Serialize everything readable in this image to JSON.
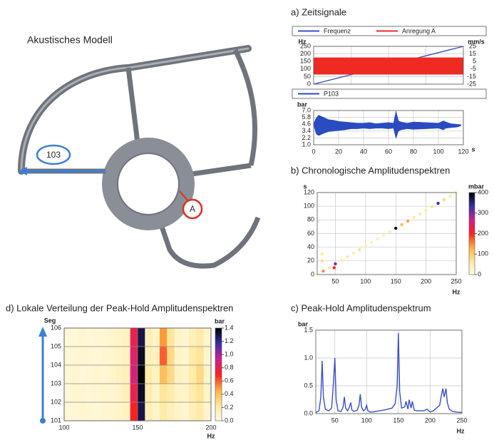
{
  "model": {
    "title": "Akustisches Modell",
    "sensor_label": "103",
    "excitation_label": "A"
  },
  "chart_data": [
    {
      "type": "line",
      "title": "a) Zeitsignale",
      "y_label": "Hz",
      "y2_label": "mm/s",
      "x": [
        0,
        120
      ],
      "xlim": [
        0,
        120
      ],
      "ylim": [
        0,
        250
      ],
      "yticks": [
        0,
        50,
        100,
        150,
        200,
        250
      ],
      "y2lim": [
        -25,
        25
      ],
      "y2ticks": [
        -25,
        -15,
        -5,
        5,
        15,
        25
      ],
      "grid": true,
      "series": [
        {
          "name": "Frequenz",
          "color": "#3b4fc0",
          "values": [
            0,
            250
          ]
        },
        {
          "name": "Anregung A",
          "color": "#ee2a22",
          "axis": "y2",
          "type": "band",
          "high": [
            10,
            10
          ],
          "low": [
            -12,
            -12
          ]
        }
      ]
    },
    {
      "type": "line",
      "x_label": "s",
      "y_label": "bar",
      "x": [
        0,
        2,
        4,
        8,
        12,
        16,
        20,
        25,
        30,
        35,
        40,
        45,
        50,
        55,
        60,
        64,
        66,
        68,
        70,
        75,
        80,
        90,
        100,
        104,
        106,
        110,
        115,
        118
      ],
      "xlim": [
        0,
        120
      ],
      "xticks": [
        0,
        20,
        40,
        60,
        80,
        100,
        120
      ],
      "ylim": [
        1,
        7
      ],
      "yticks": [
        {
          "value": 1,
          "label": "1.0"
        },
        2.2,
        3.4,
        4.6,
        5.8,
        {
          "value": 7,
          "label": "7.0"
        }
      ],
      "grid": true,
      "series": [
        {
          "name": "P103",
          "color": "#2a4cc0",
          "type": "band",
          "high": [
            4.7,
            5.7,
            6.2,
            5.8,
            5.4,
            5.3,
            5.1,
            5.0,
            4.9,
            4.8,
            4.8,
            4.9,
            4.7,
            4.8,
            4.9,
            4.8,
            6.9,
            5.2,
            5.0,
            4.8,
            5.0,
            4.9,
            4.8,
            5.2,
            5.0,
            4.7,
            4.6,
            4.5
          ],
          "low": [
            4.5,
            2.9,
            2.6,
            3.0,
            3.3,
            3.4,
            3.5,
            3.6,
            3.8,
            3.8,
            3.9,
            3.8,
            3.9,
            3.9,
            3.8,
            3.9,
            2.1,
            3.4,
            3.6,
            3.8,
            3.7,
            3.8,
            3.9,
            3.6,
            3.9,
            4.0,
            4.1,
            4.3
          ]
        }
      ]
    },
    {
      "type": "scatter",
      "title": "b) Chronologische Amplitudenspektren",
      "x_label": "Hz",
      "y_label": "s",
      "z_label": "mbar",
      "x": [
        20,
        30,
        40,
        50,
        60,
        70,
        80,
        90,
        100,
        110,
        120,
        130,
        140,
        150,
        160,
        170,
        180,
        190,
        200,
        210,
        220,
        230,
        240,
        250,
        28,
        28,
        48
      ],
      "y": [
        0,
        5.2,
        10.4,
        15.7,
        20.9,
        26.1,
        31.3,
        36.5,
        41.7,
        47.0,
        52.2,
        57.4,
        62.6,
        67.8,
        73.0,
        78.3,
        83.5,
        88.7,
        93.9,
        99.1,
        104.3,
        109.6,
        114.8,
        120,
        20,
        30,
        10
      ],
      "z": [
        40,
        150,
        60,
        300,
        50,
        60,
        50,
        80,
        50,
        40,
        40,
        40,
        50,
        380,
        120,
        140,
        60,
        50,
        60,
        70,
        330,
        90,
        60,
        50,
        80,
        60,
        200
      ],
      "xlim": [
        20,
        250
      ],
      "xticks": [
        50,
        100,
        150,
        200,
        250
      ],
      "ylim": [
        0,
        120
      ],
      "yticks": [
        0,
        20,
        40,
        60,
        80,
        100,
        120
      ],
      "zlim": [
        0,
        400
      ],
      "zticks": [
        0,
        100,
        200,
        300,
        400
      ],
      "grid": true,
      "colormap": [
        "#fffbe6",
        "#ffe9a0",
        "#ffb040",
        "#ff2020",
        "#d0208c",
        "#3b2fa8",
        "#000000"
      ]
    },
    {
      "type": "line",
      "title": "c) Peak-Hold Amplitudenspektrum",
      "x_label": "Hz",
      "y_label": "bar",
      "x": [
        20,
        25,
        28,
        30,
        32,
        35,
        40,
        45,
        48,
        50,
        52,
        55,
        60,
        63,
        65,
        67,
        70,
        73,
        75,
        77,
        80,
        85,
        88,
        90,
        92,
        95,
        98,
        100,
        102,
        105,
        110,
        120,
        130,
        140,
        145,
        148,
        150,
        152,
        155,
        160,
        162,
        165,
        167,
        170,
        172,
        175,
        180,
        190,
        195,
        200,
        205,
        210,
        215,
        218,
        220,
        222,
        225,
        227,
        230,
        235,
        240,
        250
      ],
      "xlim": [
        20,
        250
      ],
      "xticks": [
        50,
        100,
        150,
        200,
        250
      ],
      "ylim": [
        0,
        1.5
      ],
      "yticks": [
        {
          "value": 0,
          "label": "0.0"
        },
        0.5,
        {
          "value": 1,
          "label": "1.0"
        },
        1.5
      ],
      "grid": true,
      "series": [
        {
          "color": "#3b4fc0",
          "values": [
            0.02,
            0.05,
            0.3,
            0.95,
            0.3,
            0.08,
            0.05,
            0.1,
            0.6,
            1.0,
            0.25,
            0.05,
            0.04,
            0.12,
            0.3,
            0.1,
            0.05,
            0.12,
            0.2,
            0.06,
            0.04,
            0.06,
            0.15,
            0.35,
            0.12,
            0.05,
            0.08,
            0.15,
            0.05,
            0.03,
            0.03,
            0.05,
            0.07,
            0.1,
            0.18,
            0.5,
            1.45,
            0.4,
            0.1,
            0.12,
            0.22,
            0.08,
            0.25,
            0.1,
            0.22,
            0.06,
            0.05,
            0.05,
            0.08,
            0.03,
            0.05,
            0.1,
            0.15,
            0.35,
            0.45,
            0.3,
            0.45,
            0.2,
            0.08,
            0.04,
            0.03,
            0.02
          ]
        }
      ]
    },
    {
      "type": "heatmap",
      "title": "d) Lokale Verteilung der Peak-Hold Amplitudenspektren",
      "x_label": "Hz",
      "y_label": "Seg",
      "z_label": "bar",
      "x_bins": [
        100,
        105,
        110,
        115,
        120,
        125,
        130,
        135,
        140,
        145,
        150,
        155,
        160,
        165,
        170,
        175,
        180,
        185,
        190,
        195,
        200
      ],
      "y_bins": [
        101,
        102,
        103,
        104,
        105,
        106
      ],
      "z": [
        [
          0.05,
          0.06,
          0.08,
          0.06,
          0.05,
          0.07,
          0.08,
          0.1,
          0.12,
          0.7,
          1.3,
          0.15,
          0.1,
          0.2,
          0.15,
          0.1,
          0.08,
          0.15,
          0.2,
          0.08
        ],
        [
          0.05,
          0.08,
          0.06,
          0.05,
          0.06,
          0.08,
          0.07,
          0.1,
          0.15,
          0.8,
          1.35,
          0.18,
          0.1,
          0.25,
          0.2,
          0.1,
          0.1,
          0.18,
          0.25,
          0.1
        ],
        [
          0.06,
          0.07,
          0.05,
          0.06,
          0.08,
          0.06,
          0.09,
          0.12,
          0.15,
          0.9,
          1.4,
          0.2,
          0.12,
          0.4,
          0.3,
          0.12,
          0.1,
          0.2,
          0.3,
          0.1
        ],
        [
          0.05,
          0.06,
          0.07,
          0.06,
          0.05,
          0.07,
          0.08,
          0.1,
          0.12,
          0.85,
          1.35,
          0.15,
          0.12,
          0.6,
          0.3,
          0.1,
          0.08,
          0.2,
          0.25,
          0.08
        ],
        [
          0.05,
          0.05,
          0.06,
          0.05,
          0.06,
          0.06,
          0.08,
          0.1,
          0.12,
          0.8,
          1.3,
          0.15,
          0.1,
          0.5,
          0.25,
          0.1,
          0.08,
          0.15,
          0.2,
          0.08
        ]
      ],
      "xlim": [
        100,
        200
      ],
      "xticks": [
        100,
        150,
        200
      ],
      "ylim": [
        101,
        106
      ],
      "yticks": [
        101,
        102,
        103,
        104,
        105,
        106
      ],
      "zlim": [
        0,
        1.4
      ],
      "zticks": [
        {
          "value": 0,
          "label": "0.0"
        },
        0.2,
        0.4,
        0.6,
        0.8,
        {
          "value": 1,
          "label": "1.0"
        },
        1.2,
        1.4
      ],
      "grid": true,
      "colormap": [
        "#fffbe6",
        "#ffe9a0",
        "#ffb040",
        "#ff2020",
        "#d0208c",
        "#3b2fa8",
        "#000000"
      ]
    }
  ]
}
